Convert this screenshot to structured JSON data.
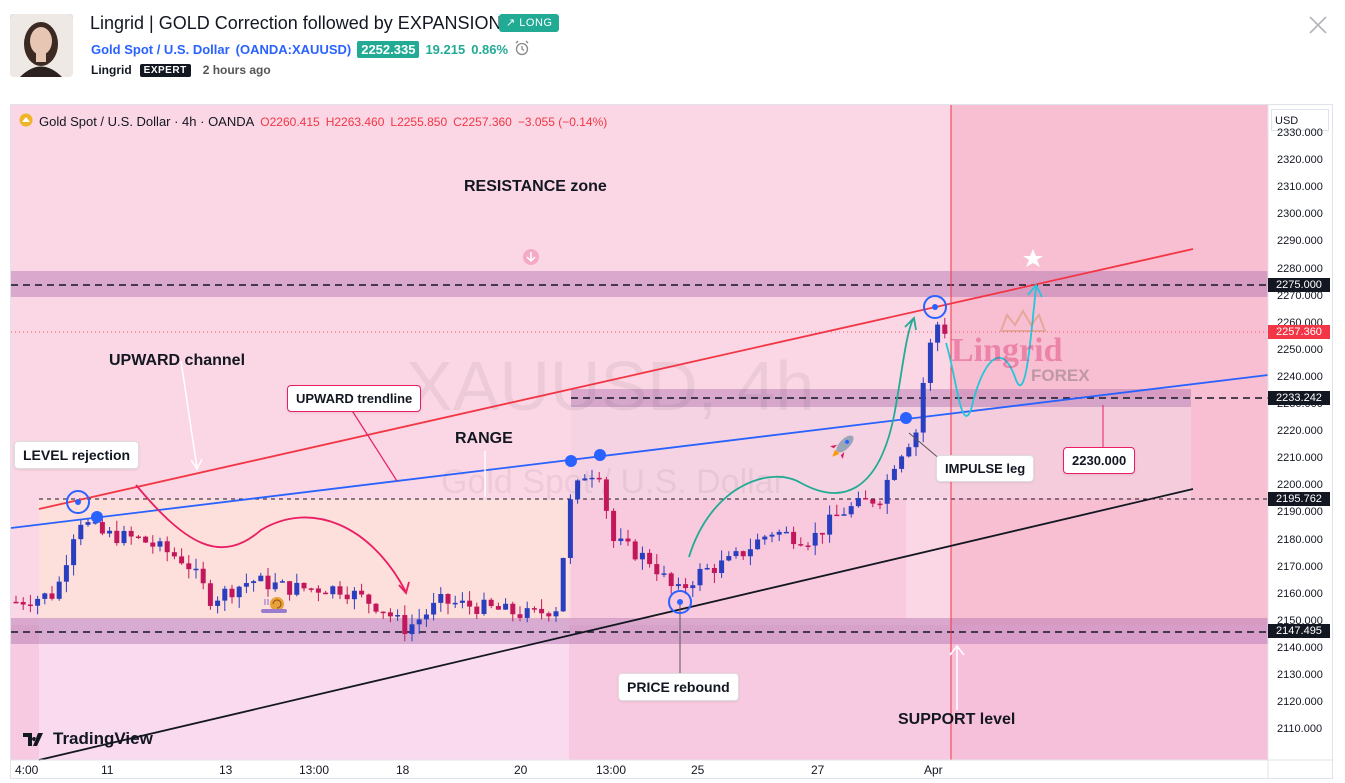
{
  "header": {
    "title": "Lingrid | GOLD Correction followed by EXPANSION",
    "badge": "↗ LONG",
    "symbol_name": "Gold Spot / U.S. Dollar",
    "symbol_code": "(OANDA:XAUUSD)",
    "price": "2252.335",
    "change": "19.215",
    "change_pct": "0.86%",
    "author": "Lingrid",
    "author_badge": "EXPERT",
    "time_ago": "2 hours ago"
  },
  "chart": {
    "legend_title": "Gold Spot / U.S. Dollar · 4h · OANDA",
    "open": "O2260.415",
    "high": "H2263.460",
    "low": "L2255.850",
    "close": "C2257.360",
    "change": "−3.055 (−0.14%)",
    "currency": "USD",
    "watermark_main": "XAUUSD, 4h",
    "watermark_sub": "Gold Spot / U.S. Dollar",
    "logo": "TradingView",
    "brand_1": "Lingrid",
    "brand_2": "FOREX"
  },
  "annotations": {
    "resistance_zone": "RESISTANCE zone",
    "upward_channel": "UPWARD channel",
    "upward_trendline": "UPWARD trendline",
    "range": "RANGE",
    "level_rejection": "LEVEL rejection",
    "impulse_leg": "IMPULSE leg",
    "target": "2230.000",
    "price_rebound": "PRICE rebound",
    "support_level": "SUPPORT level"
  },
  "price_axis": [
    "2330.000",
    "2320.000",
    "2310.000",
    "2300.000",
    "2290.000",
    "2280.000",
    "2270.000",
    "2260.000",
    "2250.000",
    "2240.000",
    "2230.000",
    "2220.000",
    "2210.000",
    "2200.000",
    "2190.000",
    "2180.000",
    "2170.000",
    "2160.000",
    "2150.000",
    "2140.000",
    "2130.000",
    "2120.000",
    "2110.000"
  ],
  "price_tags": {
    "resistance": "2275.000",
    "last": "2257.360",
    "mid": "2233.242",
    "range_top": "2195.762",
    "support": "2147.495"
  },
  "time_axis": [
    "4:00",
    "11",
    "13",
    "13:00",
    "18",
    "20",
    "13:00",
    "25",
    "27",
    "Apr"
  ],
  "colors": {
    "accent_green": "#22ab94",
    "link_blue": "#2962ff",
    "bear": "#f23645",
    "bull": "#2a3fbf",
    "pink_bg": "#fbd3e3"
  }
}
